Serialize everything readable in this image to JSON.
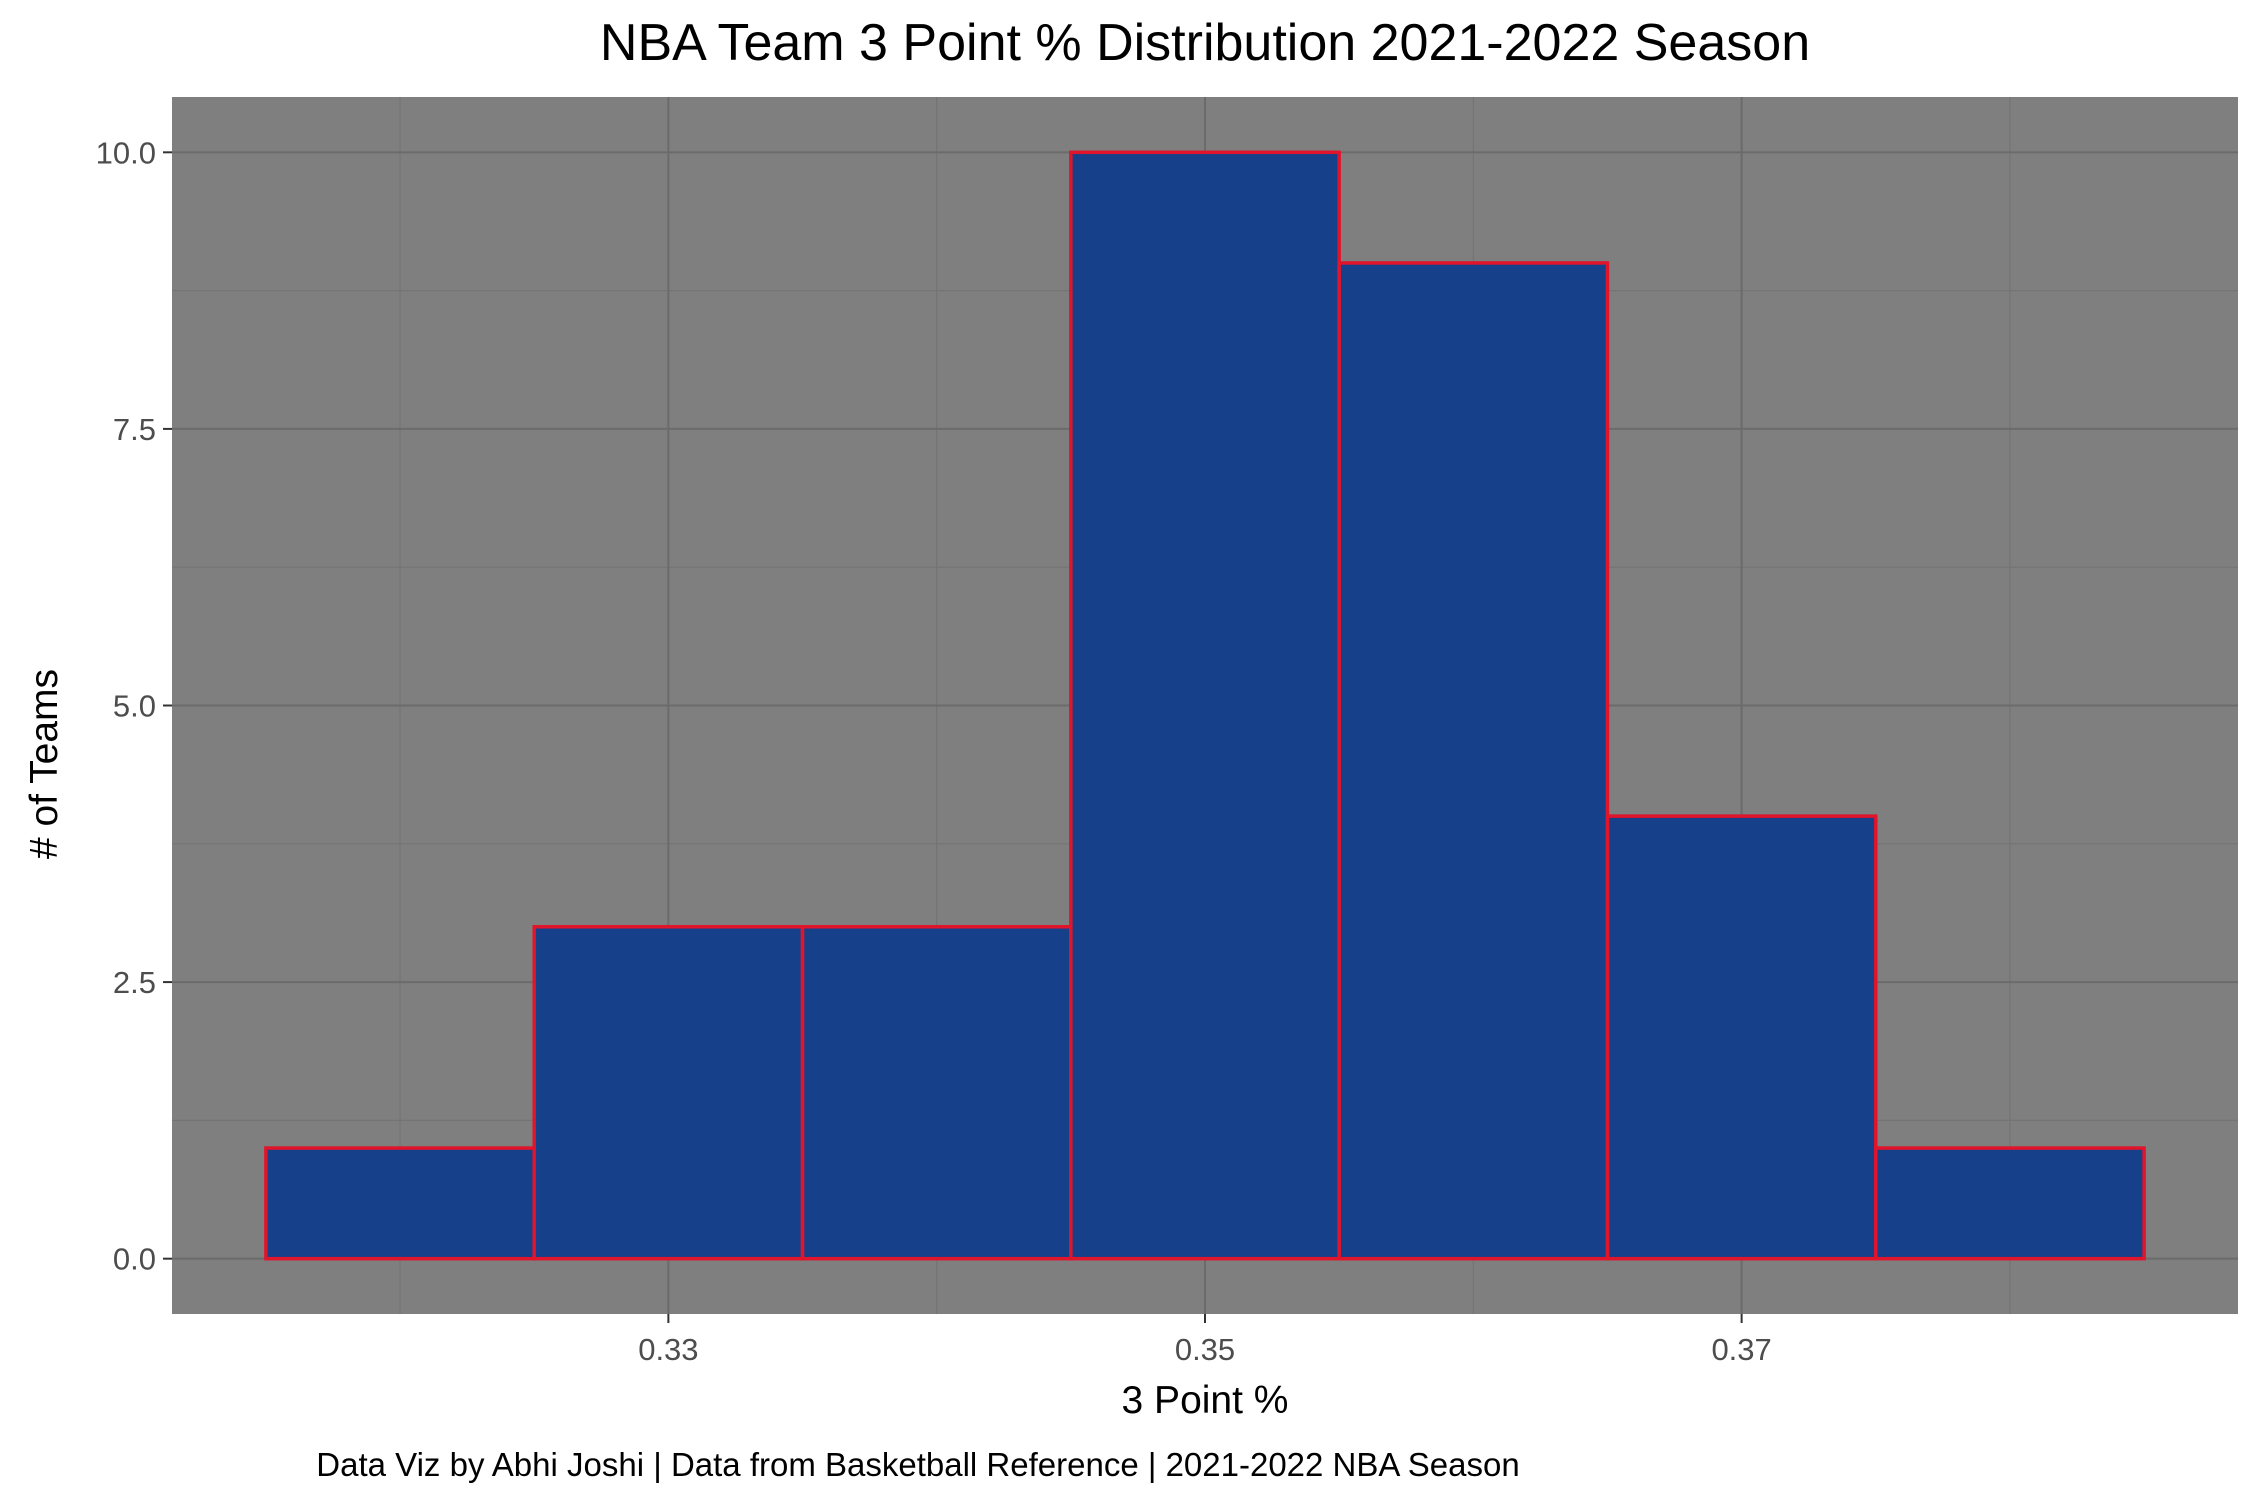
{
  "chart_data": {
    "type": "histogram",
    "title": "NBA Team 3 Point % Distribution 2021-2022 Season",
    "xlabel": "3 Point %",
    "ylabel": "# of Teams",
    "caption": "Data Viz by Abhi Joshi | Data from Basketball Reference | 2021-2022 NBA Season",
    "bins": [
      {
        "x_start": 0.315,
        "x_end": 0.325,
        "count": 1
      },
      {
        "x_start": 0.325,
        "x_end": 0.335,
        "count": 3
      },
      {
        "x_start": 0.335,
        "x_end": 0.345,
        "count": 3
      },
      {
        "x_start": 0.345,
        "x_end": 0.355,
        "count": 10
      },
      {
        "x_start": 0.355,
        "x_end": 0.365,
        "count": 9
      },
      {
        "x_start": 0.365,
        "x_end": 0.375,
        "count": 4
      },
      {
        "x_start": 0.375,
        "x_end": 0.385,
        "count": 1
      }
    ],
    "xlim": [
      0.3115,
      0.3885
    ],
    "ylim": [
      -0.5,
      10.5
    ],
    "x_ticks": [
      0.33,
      0.35,
      0.37
    ],
    "x_tick_labels": [
      "0.33",
      "0.35",
      "0.37"
    ],
    "x_minor_ticks": [
      0.32,
      0.34,
      0.36,
      0.38
    ],
    "y_ticks": [
      0,
      2.5,
      5,
      7.5,
      10
    ],
    "y_tick_labels": [
      "0.0",
      "2.5",
      "5.0",
      "7.5",
      "10.0"
    ],
    "y_minor_ticks": [
      1.25,
      3.75,
      6.25,
      8.75
    ],
    "grid": true,
    "colors": {
      "panel_background": "#7f7f7f",
      "grid_major": "#6b6b6b",
      "grid_minor": "#747474",
      "bar_fill": "#17408b",
      "bar_outline": "#e0142b"
    }
  }
}
